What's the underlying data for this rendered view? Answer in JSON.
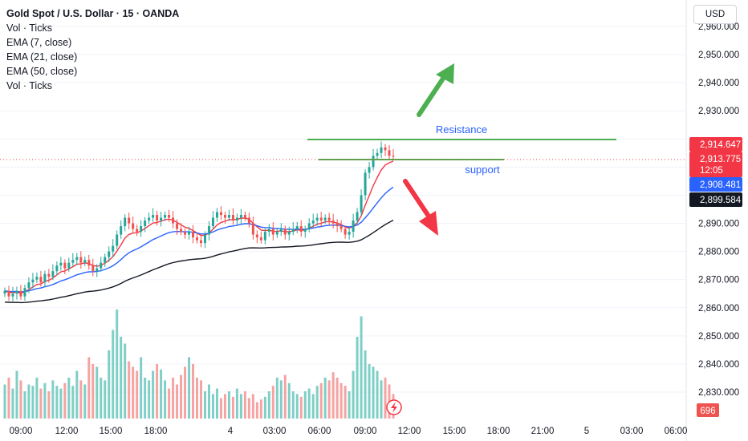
{
  "legend": {
    "title": "Gold Spot / U.S. Dollar · 15 · OANDA",
    "lines": [
      "Vol · Ticks",
      "EMA (7, close)",
      "EMA (21, close)",
      "EMA (50, close)",
      "Vol · Ticks"
    ]
  },
  "currency_button": "USD",
  "chart_data": {
    "type": "candlestick",
    "y_axis": {
      "min": 2825,
      "max": 2960,
      "ticks": [
        "2,960.000",
        "2,950.000",
        "2,940.000",
        "2,930.000",
        "2,890.000",
        "2,880.000",
        "2,870.000",
        "2,860.000",
        "2,850.000",
        "2,840.000",
        "2,830.000"
      ]
    },
    "x_axis": {
      "ticks": [
        "09:00",
        "12:00",
        "15:00",
        "18:00",
        "4",
        "03:00",
        "06:00",
        "09:00",
        "12:00",
        "15:00",
        "18:00",
        "21:00",
        "5",
        "03:00",
        "06:00"
      ]
    },
    "price_tags": [
      {
        "label": "2,914.647",
        "value": 2914.647,
        "color": "#f23645"
      },
      {
        "label": "2,913.775",
        "sub": "12:05",
        "value": 2913.775,
        "color": "#f23645"
      },
      {
        "label": "2,908.481",
        "value": 2908.481,
        "color": "#2962ff"
      },
      {
        "label": "2,899.584",
        "value": 2899.584,
        "color": "#131722"
      }
    ],
    "volume_tag": "696",
    "annotations": {
      "resistance_label": "Resistance",
      "support_label": "support",
      "resistance_price": 2914.6,
      "support_price": 2913.7
    },
    "colors": {
      "up": "#26a69a",
      "down": "#ef5350",
      "ema7": "#f23645",
      "ema21": "#2962ff",
      "ema50": "#131722",
      "lines": "#4caf50",
      "arrow_up": "#4caf50",
      "arrow_down": "#f23645"
    },
    "closes": [
      2866,
      2864,
      2865,
      2866,
      2864,
      2867,
      2869,
      2870,
      2871,
      2869,
      2872,
      2871,
      2873,
      2875,
      2876,
      2874,
      2876,
      2877,
      2878,
      2876,
      2877,
      2875,
      2873,
      2874,
      2876,
      2878,
      2880,
      2882,
      2886,
      2889,
      2892,
      2890,
      2888,
      2887,
      2889,
      2891,
      2892,
      2893,
      2891,
      2892,
      2893,
      2892,
      2890,
      2888,
      2887,
      2886,
      2887,
      2885,
      2884,
      2883,
      2886,
      2889,
      2892,
      2894,
      2893,
      2892,
      2893,
      2891,
      2892,
      2893,
      2892,
      2890,
      2886,
      2885,
      2884,
      2887,
      2888,
      2886,
      2887,
      2888,
      2886,
      2887,
      2888,
      2889,
      2887,
      2888,
      2890,
      2891,
      2892,
      2891,
      2892,
      2891,
      2890,
      2889,
      2888,
      2886,
      2887,
      2891,
      2894,
      2900,
      2908,
      2910,
      2914,
      2915,
      2917,
      2916,
      2914,
      2913.8
    ],
    "volumes": [
      25,
      30,
      22,
      35,
      28,
      20,
      25,
      24,
      30,
      22,
      26,
      20,
      28,
      24,
      22,
      26,
      30,
      24,
      35,
      28,
      25,
      45,
      40,
      38,
      30,
      28,
      50,
      65,
      80,
      60,
      55,
      42,
      38,
      35,
      45,
      30,
      28,
      35,
      40,
      36,
      28,
      22,
      30,
      25,
      32,
      38,
      45,
      40,
      30,
      28,
      20,
      25,
      18,
      22,
      15,
      18,
      20,
      16,
      22,
      18,
      20,
      15,
      18,
      12,
      14,
      16,
      20,
      24,
      30,
      28,
      32,
      26,
      20,
      18,
      16,
      20,
      22,
      18,
      24,
      26,
      30,
      28,
      34,
      30,
      26,
      24,
      20,
      35,
      60,
      75,
      50,
      40,
      38,
      35,
      28,
      30,
      25,
      18
    ]
  }
}
